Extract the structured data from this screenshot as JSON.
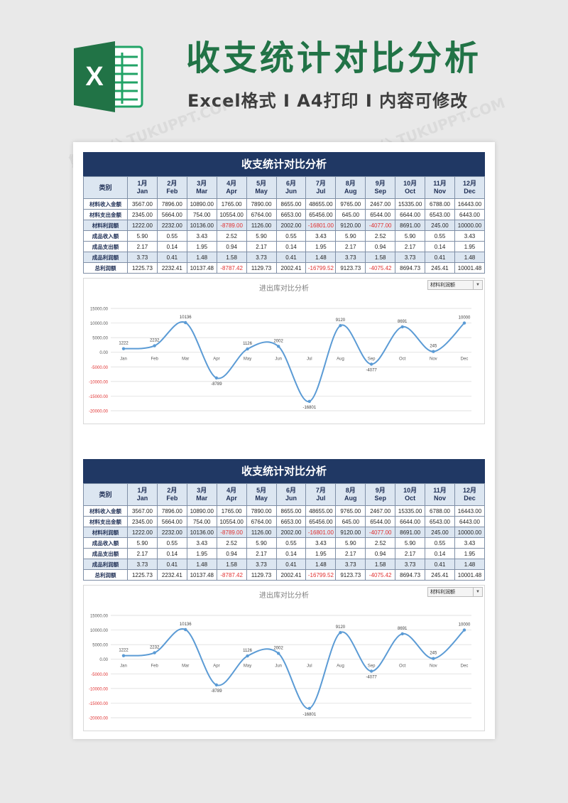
{
  "header": {
    "title": "收支统计对比分析",
    "subtitle": "Excel格式 I A4打印 I 内容可修改",
    "logo_letter": "X"
  },
  "watermark": "熊猫办公 TUKUPPT.COM",
  "table": {
    "title": "收支统计对比分析",
    "corner": "类别",
    "months": [
      {
        "cn": "1月",
        "en": "Jan"
      },
      {
        "cn": "2月",
        "en": "Feb"
      },
      {
        "cn": "3月",
        "en": "Mar"
      },
      {
        "cn": "4月",
        "en": "Apr"
      },
      {
        "cn": "5月",
        "en": "May"
      },
      {
        "cn": "6月",
        "en": "Jun"
      },
      {
        "cn": "7月",
        "en": "Jul"
      },
      {
        "cn": "8月",
        "en": "Aug"
      },
      {
        "cn": "9月",
        "en": "Sep"
      },
      {
        "cn": "10月",
        "en": "Oct"
      },
      {
        "cn": "11月",
        "en": "Nov"
      },
      {
        "cn": "12月",
        "en": "Dec"
      }
    ],
    "rows": [
      {
        "label": "材料收入金额",
        "values": [
          "3567.00",
          "7896.00",
          "10890.00",
          "1765.00",
          "7890.00",
          "8655.00",
          "48655.00",
          "9765.00",
          "2467.00",
          "15335.00",
          "6788.00",
          "16443.00"
        ]
      },
      {
        "label": "材料支出金额",
        "values": [
          "2345.00",
          "5664.00",
          "754.00",
          "10554.00",
          "6764.00",
          "6653.00",
          "65456.00",
          "645.00",
          "6544.00",
          "6644.00",
          "6543.00",
          "6443.00"
        ]
      },
      {
        "label": "材料利润额",
        "values": [
          "1222.00",
          "2232.00",
          "10136.00",
          "-8789.00",
          "1126.00",
          "2002.00",
          "-16801.00",
          "9120.00",
          "-4077.00",
          "8691.00",
          "245.00",
          "10000.00"
        ]
      },
      {
        "label": "成品收入额",
        "values": [
          "5.90",
          "0.55",
          "3.43",
          "2.52",
          "5.90",
          "0.55",
          "3.43",
          "5.90",
          "2.52",
          "5.90",
          "0.55",
          "3.43"
        ]
      },
      {
        "label": "成品支出额",
        "values": [
          "2.17",
          "0.14",
          "1.95",
          "0.94",
          "2.17",
          "0.14",
          "1.95",
          "2.17",
          "0.94",
          "2.17",
          "0.14",
          "1.95"
        ]
      },
      {
        "label": "成品利润额",
        "values": [
          "3.73",
          "0.41",
          "1.48",
          "1.58",
          "3.73",
          "0.41",
          "1.48",
          "3.73",
          "1.58",
          "3.73",
          "0.41",
          "1.48"
        ]
      },
      {
        "label": "总利润额",
        "values": [
          "1225.73",
          "2232.41",
          "10137.48",
          "-8787.42",
          "1129.73",
          "2002.41",
          "-16799.52",
          "9123.73",
          "-4075.42",
          "8694.73",
          "245.41",
          "10001.48"
        ]
      }
    ]
  },
  "chart_data": {
    "type": "line",
    "title": "进出库对比分析",
    "selector_value": "材料利润额",
    "categories": [
      "Jan",
      "Feb",
      "Mar",
      "Apr",
      "May",
      "Jun",
      "Jul",
      "Aug",
      "Sep",
      "Oct",
      "Nov",
      "Dec"
    ],
    "values": [
      1222,
      2232,
      10136,
      -8789,
      1126,
      2002,
      -16801,
      9120,
      -4077,
      8691,
      245,
      10000
    ],
    "data_labels": [
      "1222",
      "2232",
      "10136",
      "-8789",
      "1126",
      "2002",
      "-16801",
      "9120",
      "-4077",
      "8691",
      "245",
      "10000"
    ],
    "y_ticks": [
      "15000.00",
      "10000.00",
      "5000.00",
      "0.00",
      "-5000.00",
      "-10000.00",
      "-15000.00",
      "-20000.00"
    ],
    "ylim": [
      -20000,
      15000
    ],
    "grid": true,
    "line_color": "#5b9bd5",
    "negative_color": "#e03030"
  }
}
